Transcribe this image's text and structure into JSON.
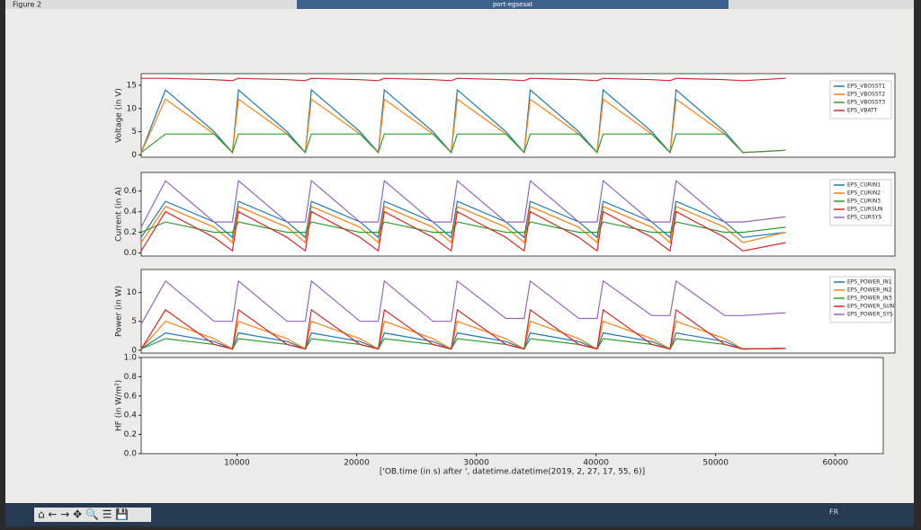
{
  "window": {
    "title": "Figure 2",
    "app_title": "port-egsesat",
    "language": "FR"
  },
  "chart_data": [
    {
      "type": "line",
      "y_label": "Voltage (in V)",
      "x": [
        2000,
        4000,
        8000,
        9500,
        10000,
        14000,
        15500,
        16000,
        20000,
        21500,
        22000,
        26000,
        27500,
        28000,
        32000,
        33500,
        34000,
        38000,
        39500,
        40000,
        44000,
        45500,
        46000,
        50000,
        51500,
        55000
      ],
      "xlim": [
        2000,
        64000
      ],
      "ylim": [
        -0.5,
        17.5
      ],
      "yticks": [
        0,
        5,
        10,
        15
      ],
      "series": [
        {
          "name": "EPS_VBOSST1",
          "color": "#1f77b4",
          "values": [
            0.5,
            14,
            5,
            0.5,
            14,
            5,
            0.5,
            14,
            5,
            0.5,
            14,
            5,
            0.5,
            14,
            5,
            0.5,
            14,
            5,
            0.5,
            14,
            5,
            0.5,
            14,
            5,
            0.5,
            1
          ]
        },
        {
          "name": "EPS_VBOSST2",
          "color": "#ff7f0e",
          "values": [
            0.5,
            12,
            4.5,
            0.5,
            12,
            4.5,
            0.5,
            12,
            4.5,
            0.5,
            12,
            4.5,
            0.5,
            12,
            4.5,
            0.5,
            12,
            4.5,
            0.5,
            12,
            4.5,
            0.5,
            12,
            4.5,
            0.5,
            1
          ]
        },
        {
          "name": "EPS_VBOSST3",
          "color": "#2ca02c",
          "values": [
            0.5,
            4.5,
            4.5,
            0.5,
            4.5,
            4.5,
            0.5,
            4.5,
            4.5,
            0.5,
            4.5,
            4.5,
            0.5,
            4.5,
            4.5,
            0.5,
            4.5,
            4.5,
            0.5,
            4.5,
            4.5,
            0.5,
            4.5,
            4.5,
            0.5,
            1
          ]
        },
        {
          "name": "EPS_VBATT",
          "color": "#d62728",
          "values": [
            16.5,
            16.5,
            16.2,
            16,
            16.5,
            16.2,
            16,
            16.5,
            16.2,
            16,
            16.5,
            16.2,
            16,
            16.5,
            16.2,
            16,
            16.5,
            16.2,
            16,
            16.5,
            16.2,
            16,
            16.5,
            16.2,
            16,
            16.5
          ]
        }
      ]
    },
    {
      "type": "line",
      "y_label": "Current (in A)",
      "x": [
        2000,
        4000,
        8000,
        9500,
        10000,
        14000,
        15500,
        16000,
        20000,
        21500,
        22000,
        26000,
        27500,
        28000,
        32000,
        33500,
        34000,
        38000,
        39500,
        40000,
        44000,
        45500,
        46000,
        50000,
        51500,
        55000
      ],
      "xlim": [
        2000,
        64000
      ],
      "ylim": [
        -0.03,
        0.78
      ],
      "yticks": [
        {
          "value": 0,
          "label": "0.0"
        },
        {
          "value": 0.2,
          "label": "0.2"
        },
        {
          "value": 0.4,
          "label": "0.4"
        },
        {
          "value": 0.6,
          "label": "0.6"
        }
      ],
      "series": [
        {
          "name": "EPS_CURIN1",
          "color": "#1f77b4",
          "values": [
            0.15,
            0.5,
            0.3,
            0.15,
            0.5,
            0.3,
            0.15,
            0.5,
            0.3,
            0.15,
            0.5,
            0.3,
            0.15,
            0.5,
            0.3,
            0.15,
            0.5,
            0.3,
            0.15,
            0.5,
            0.3,
            0.15,
            0.5,
            0.3,
            0.15,
            0.2
          ]
        },
        {
          "name": "EPS_CURIN2",
          "color": "#ff7f0e",
          "values": [
            0.1,
            0.45,
            0.25,
            0.1,
            0.45,
            0.25,
            0.1,
            0.45,
            0.25,
            0.1,
            0.45,
            0.25,
            0.1,
            0.45,
            0.25,
            0.1,
            0.45,
            0.25,
            0.1,
            0.45,
            0.25,
            0.1,
            0.45,
            0.25,
            0.1,
            0.2
          ]
        },
        {
          "name": "EPS_CURIN3",
          "color": "#2ca02c",
          "values": [
            0.2,
            0.3,
            0.2,
            0.2,
            0.3,
            0.2,
            0.2,
            0.3,
            0.2,
            0.2,
            0.3,
            0.2,
            0.2,
            0.3,
            0.2,
            0.2,
            0.3,
            0.2,
            0.2,
            0.3,
            0.2,
            0.2,
            0.3,
            0.2,
            0.2,
            0.25
          ]
        },
        {
          "name": "EPS_CURSUN",
          "color": "#d62728",
          "values": [
            0.02,
            0.4,
            0.15,
            0.02,
            0.4,
            0.15,
            0.02,
            0.4,
            0.15,
            0.02,
            0.4,
            0.15,
            0.02,
            0.4,
            0.15,
            0.02,
            0.4,
            0.15,
            0.02,
            0.4,
            0.15,
            0.02,
            0.4,
            0.15,
            0.02,
            0.1
          ]
        },
        {
          "name": "EPS_CURSYS",
          "color": "#9467bd",
          "values": [
            0.25,
            0.7,
            0.3,
            0.3,
            0.7,
            0.3,
            0.3,
            0.7,
            0.3,
            0.3,
            0.7,
            0.3,
            0.3,
            0.7,
            0.3,
            0.3,
            0.7,
            0.3,
            0.3,
            0.7,
            0.3,
            0.3,
            0.7,
            0.3,
            0.3,
            0.35
          ]
        }
      ]
    },
    {
      "type": "line",
      "y_label": "Power (in W)",
      "x": [
        2000,
        4000,
        8000,
        9500,
        10000,
        14000,
        15500,
        16000,
        20000,
        21500,
        22000,
        26000,
        27500,
        28000,
        32000,
        33500,
        34000,
        38000,
        39500,
        40000,
        44000,
        45500,
        46000,
        50000,
        51500,
        55000
      ],
      "xlim": [
        2000,
        64000
      ],
      "ylim": [
        -0.5,
        14
      ],
      "yticks": [
        0,
        5,
        10
      ],
      "series": [
        {
          "name": "EPS_POWER_IN1",
          "color": "#1f77b4",
          "values": [
            0.2,
            3,
            1.5,
            0.2,
            3,
            1.5,
            0.2,
            3,
            1.5,
            0.2,
            3,
            1.5,
            0.2,
            3,
            1.5,
            0.2,
            3,
            1.5,
            0.2,
            3,
            1.5,
            0.2,
            3,
            1.5,
            0.2,
            0.3
          ]
        },
        {
          "name": "EPS_POWER_IN2",
          "color": "#ff7f0e",
          "values": [
            0.2,
            5,
            2,
            0.2,
            5,
            2,
            0.2,
            5,
            2,
            0.2,
            5,
            2,
            0.2,
            5,
            2,
            0.2,
            5,
            2,
            0.2,
            5,
            2,
            0.2,
            5,
            2,
            0.2,
            0.3
          ]
        },
        {
          "name": "EPS_POWER_IN3",
          "color": "#2ca02c",
          "values": [
            0.2,
            2,
            1,
            0.2,
            2,
            1,
            0.2,
            2,
            1,
            0.2,
            2,
            1,
            0.2,
            2,
            1,
            0.2,
            2,
            1,
            0.2,
            2,
            1,
            0.2,
            2,
            1,
            0.2,
            0.3
          ]
        },
        {
          "name": "EPS_POWER_SUN",
          "color": "#d62728",
          "values": [
            0.2,
            7,
            1,
            0.2,
            7,
            1,
            0.2,
            7,
            1,
            0.2,
            7,
            1,
            0.2,
            7,
            1,
            0.2,
            7,
            1,
            0.2,
            7,
            1,
            0.2,
            7,
            1,
            0.2,
            0.3
          ]
        },
        {
          "name": "EPS_POWER_SYS",
          "color": "#9467bd",
          "values": [
            4.5,
            12,
            5,
            5,
            12,
            5,
            5,
            12,
            5,
            5,
            12,
            5,
            5,
            12,
            5.5,
            5.5,
            12,
            5.5,
            5.5,
            12,
            6,
            6,
            12,
            6,
            6,
            6.5
          ]
        }
      ]
    },
    {
      "type": "line",
      "y_label": "HF (in W/m²)",
      "x_label": "['OB.time (in s) after ', datetime.datetime(2019, 2, 27, 17, 55, 6)]",
      "xlim": [
        2000,
        64000
      ],
      "xticks": [
        10000,
        20000,
        30000,
        40000,
        50000,
        60000
      ],
      "ylim": [
        0,
        1
      ],
      "yticks": [
        {
          "value": 0,
          "label": "0.0"
        },
        {
          "value": 0.2,
          "label": "0.2"
        },
        {
          "value": 0.4,
          "label": "0.4"
        },
        {
          "value": 0.6,
          "label": "0.6"
        },
        {
          "value": 0.8,
          "label": "0.8"
        },
        {
          "value": 1,
          "label": "1.0"
        }
      ],
      "series": []
    }
  ]
}
